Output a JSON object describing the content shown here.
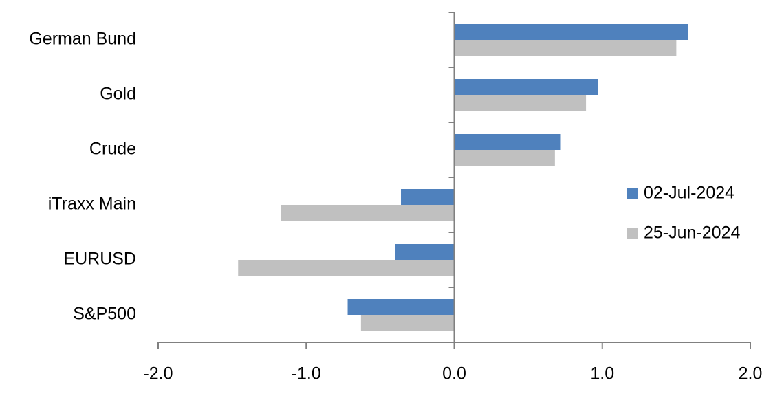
{
  "chart_data": {
    "type": "hbar",
    "categories": [
      "German Bund",
      "Gold",
      "Crude",
      "iTraxx Main",
      "EURUSD",
      "S&P500"
    ],
    "series": [
      {
        "name": "02-Jul-2024",
        "color": "#4f81bd",
        "values": [
          1.58,
          0.97,
          0.72,
          -0.36,
          -0.4,
          -0.72
        ]
      },
      {
        "name": "25-Jun-2024",
        "color": "#c0c0c0",
        "values": [
          1.5,
          0.89,
          0.68,
          -1.17,
          -1.46,
          -0.63
        ]
      }
    ],
    "xlim": [
      -2,
      2
    ],
    "xticks": [
      {
        "value": -2,
        "label": "-2.0"
      },
      {
        "value": -1,
        "label": "-1.0"
      },
      {
        "value": 0,
        "label": "0.0"
      },
      {
        "value": 1,
        "label": "1.0"
      },
      {
        "value": 2,
        "label": "2.0"
      }
    ],
    "legend": "right"
  }
}
